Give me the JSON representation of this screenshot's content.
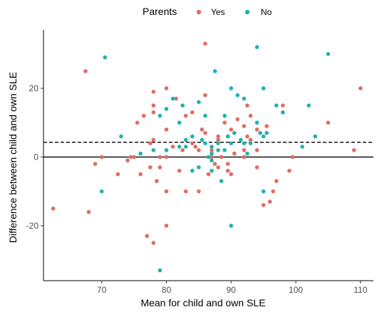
{
  "chart_data": {
    "type": "scatter",
    "xlabel": "Mean for child and own SLE",
    "ylabel": "Difference between child and own SLE",
    "xlim": [
      61,
      112
    ],
    "ylim": [
      -36,
      37
    ],
    "x_ticks": [
      70,
      80,
      90,
      100,
      110
    ],
    "y_ticks": [
      -20,
      0,
      20
    ],
    "grid": false,
    "legend": {
      "title": "Parents",
      "position": "top"
    },
    "reference_lines": [
      {
        "y": 0,
        "style": "solid"
      },
      {
        "y": 4.3,
        "style": "dashed"
      }
    ],
    "colors": {
      "Yes": "#e06c62",
      "No": "#1fb3ac"
    },
    "series": [
      {
        "name": "Yes",
        "points": [
          [
            62.5,
            -15
          ],
          [
            67.5,
            25
          ],
          [
            68,
            -16
          ],
          [
            69,
            -2
          ],
          [
            70,
            0
          ],
          [
            72.5,
            -5
          ],
          [
            74,
            -1
          ],
          [
            74.5,
            0
          ],
          [
            75,
            0
          ],
          [
            75.5,
            10
          ],
          [
            76,
            -5
          ],
          [
            76.5,
            12
          ],
          [
            77,
            -23
          ],
          [
            77.5,
            -3
          ],
          [
            77.5,
            4
          ],
          [
            78,
            13
          ],
          [
            78,
            15
          ],
          [
            78,
            -25
          ],
          [
            78,
            19
          ],
          [
            78,
            5
          ],
          [
            78.5,
            -7
          ],
          [
            79,
            0
          ],
          [
            79,
            -3
          ],
          [
            80,
            -10
          ],
          [
            80,
            -20
          ],
          [
            80,
            20
          ],
          [
            80,
            8
          ],
          [
            80,
            0
          ],
          [
            81,
            3
          ],
          [
            81.5,
            17
          ],
          [
            82,
            -4
          ],
          [
            82.5,
            2
          ],
          [
            83,
            -10
          ],
          [
            83,
            12
          ],
          [
            84,
            13
          ],
          [
            84,
            4
          ],
          [
            84.5,
            3
          ],
          [
            85,
            -10
          ],
          [
            85,
            2
          ],
          [
            85.5,
            8
          ],
          [
            86,
            7
          ],
          [
            86,
            18
          ],
          [
            86,
            33
          ],
          [
            86.5,
            -5
          ],
          [
            87,
            0
          ],
          [
            87,
            2
          ],
          [
            87.5,
            -2
          ],
          [
            88,
            -3
          ],
          [
            88,
            5
          ],
          [
            88,
            6
          ],
          [
            88.5,
            0
          ],
          [
            89,
            10
          ],
          [
            89.5,
            -2
          ],
          [
            89.5,
            -4
          ],
          [
            90,
            -5
          ],
          [
            90,
            8
          ],
          [
            90.5,
            1
          ],
          [
            91,
            11
          ],
          [
            92,
            0
          ],
          [
            92,
            2
          ],
          [
            92,
            9
          ],
          [
            92.5,
            6
          ],
          [
            92.5,
            15
          ],
          [
            93,
            5
          ],
          [
            93,
            12
          ],
          [
            94,
            2
          ],
          [
            94,
            -3
          ],
          [
            94,
            8
          ],
          [
            95,
            -14
          ],
          [
            95.5,
            9
          ],
          [
            96,
            -13
          ],
          [
            96.5,
            -10
          ],
          [
            97,
            -7
          ],
          [
            98,
            15
          ],
          [
            99,
            -4
          ],
          [
            99.5,
            0
          ],
          [
            105,
            10
          ],
          [
            109,
            2
          ],
          [
            110,
            20
          ]
        ]
      },
      {
        "name": "No",
        "points": [
          [
            70,
            -10
          ],
          [
            70.5,
            29
          ],
          [
            73,
            6
          ],
          [
            76,
            1
          ],
          [
            78,
            2
          ],
          [
            79,
            12
          ],
          [
            80,
            14
          ],
          [
            80,
            2
          ],
          [
            81,
            17
          ],
          [
            82,
            10
          ],
          [
            82,
            3
          ],
          [
            82.5,
            15
          ],
          [
            83,
            5
          ],
          [
            83,
            3
          ],
          [
            84,
            6
          ],
          [
            84,
            -4
          ],
          [
            85,
            16
          ],
          [
            85,
            -3
          ],
          [
            85.5,
            5
          ],
          [
            86,
            12
          ],
          [
            86,
            4
          ],
          [
            86.5,
            0
          ],
          [
            87,
            -4
          ],
          [
            87,
            -1
          ],
          [
            87,
            3
          ],
          [
            87,
            1
          ],
          [
            87.5,
            25
          ],
          [
            88,
            4
          ],
          [
            88,
            2
          ],
          [
            88.5,
            -7
          ],
          [
            89,
            12
          ],
          [
            89,
            2
          ],
          [
            89.5,
            6
          ],
          [
            90,
            -20
          ],
          [
            90,
            20
          ],
          [
            90,
            4
          ],
          [
            90.5,
            7
          ],
          [
            91,
            18
          ],
          [
            91.5,
            5
          ],
          [
            92,
            4
          ],
          [
            92,
            17
          ],
          [
            92.5,
            1
          ],
          [
            93,
            4
          ],
          [
            94,
            32
          ],
          [
            94,
            10
          ],
          [
            94.5,
            7
          ],
          [
            95,
            6
          ],
          [
            95,
            20
          ],
          [
            95.5,
            7
          ],
          [
            95,
            -10
          ],
          [
            97,
            15
          ],
          [
            98,
            13
          ],
          [
            101,
            3
          ],
          [
            102,
            15
          ],
          [
            103,
            6
          ],
          [
            105,
            30
          ],
          [
            79,
            -33
          ]
        ]
      }
    ]
  }
}
